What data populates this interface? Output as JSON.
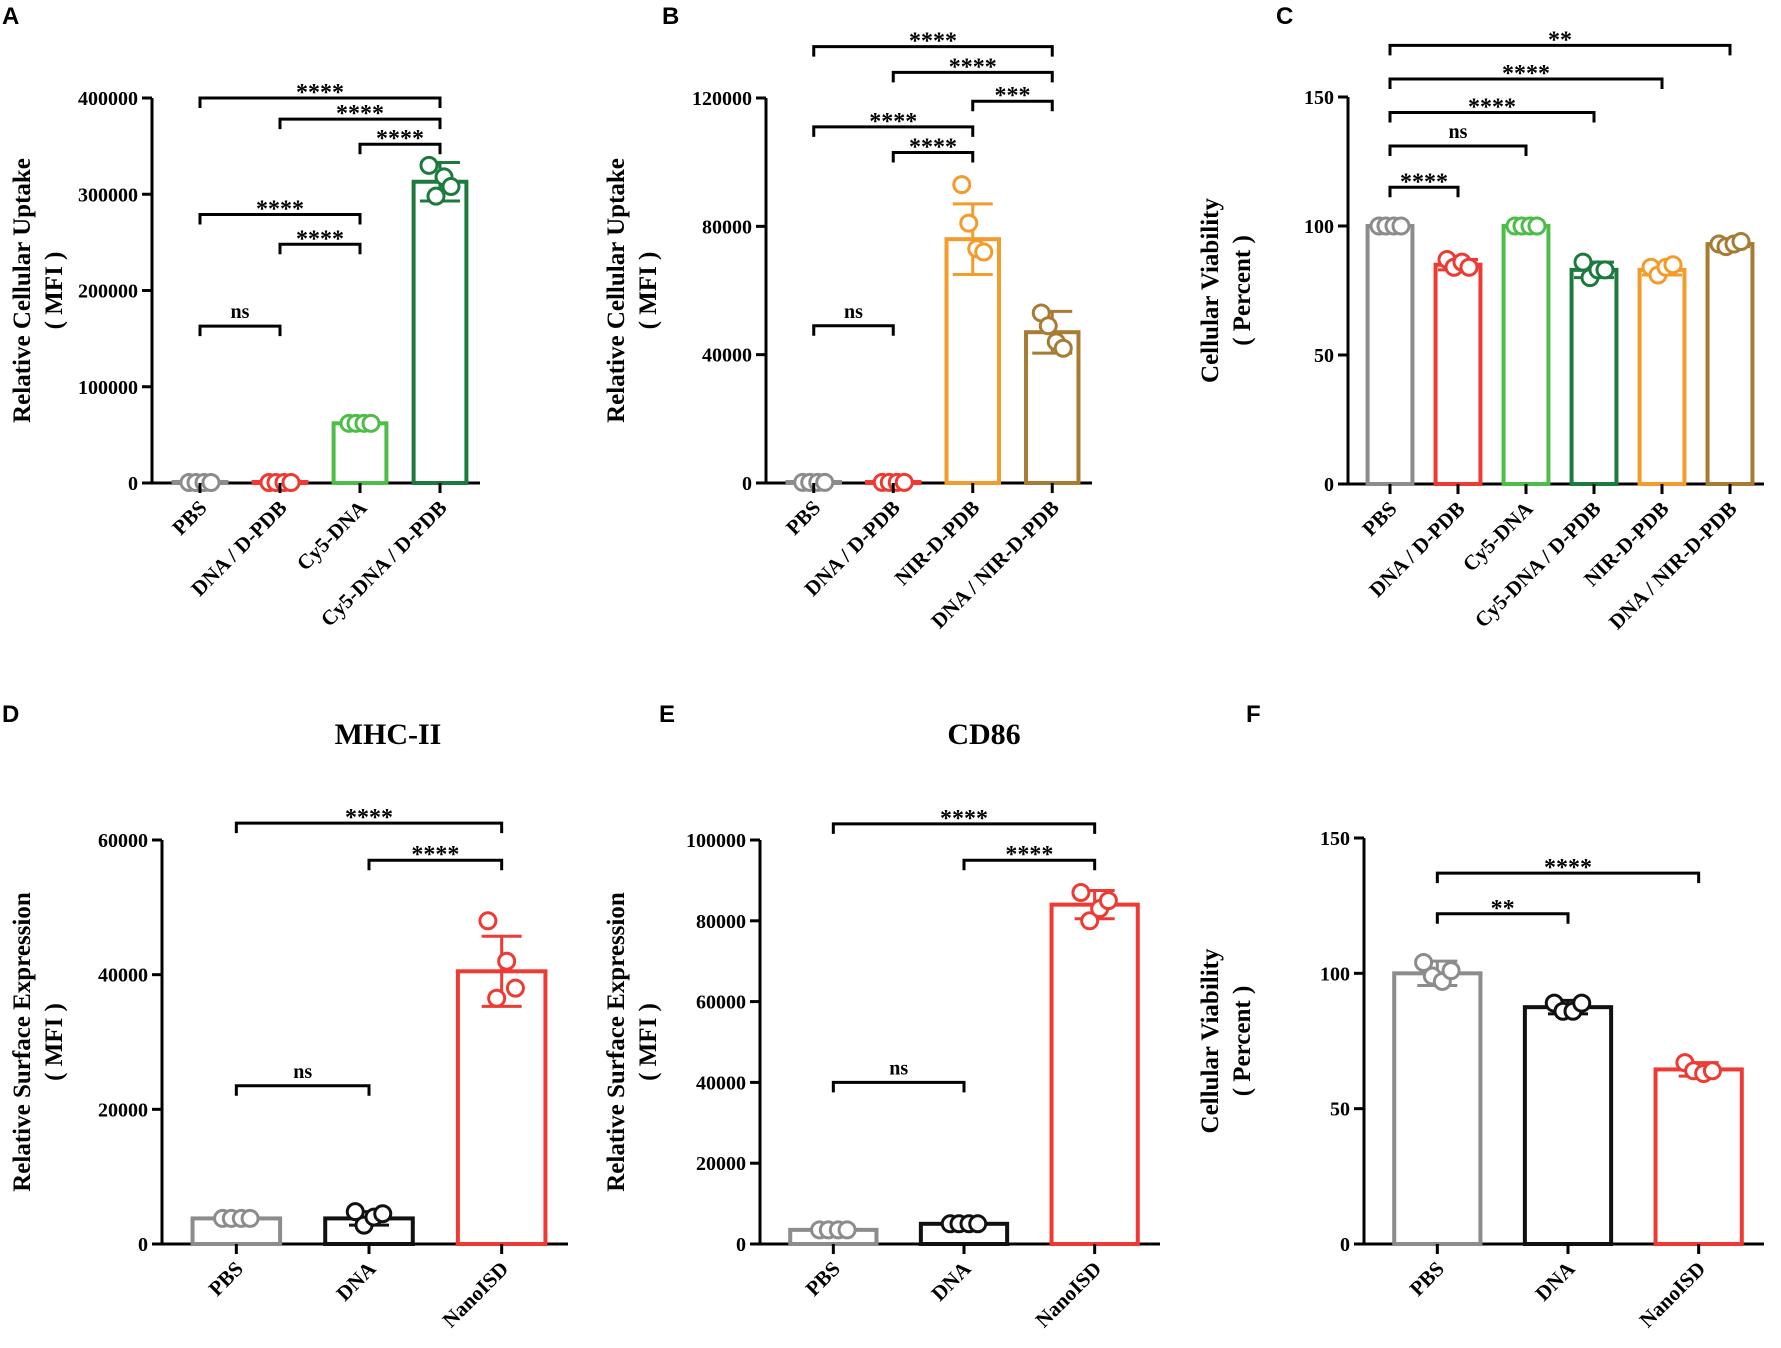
{
  "colors": {
    "gray": "#8c8c8c",
    "red": "#ee3a33",
    "light_green": "#4dbd48",
    "dark_green": "#1d7a3e",
    "orange": "#f39b2b",
    "brown": "#a87b35",
    "black": "#111111"
  },
  "chart_data": [
    {
      "panel": "A",
      "type": "bar",
      "title": "",
      "ylabel": "Relative Cellular Uptake",
      "ylabel_unit": "( MFI )",
      "ylim": [
        0,
        400000
      ],
      "yticks": [
        "0",
        "100000",
        "200000",
        "300000",
        "400000"
      ],
      "categories": [
        "PBS",
        "DNA / D-PDB",
        "Cy5-DNA",
        "Cy5-DNA / D-PDB"
      ],
      "values": [
        500,
        500,
        62000,
        313000
      ],
      "errors": [
        0,
        0,
        0,
        20000
      ],
      "points": [
        [
          500,
          500,
          500,
          500
        ],
        [
          500,
          500,
          500,
          500
        ],
        [
          62000,
          62000,
          62000,
          62000
        ],
        [
          330000,
          298000,
          318000,
          308000
        ]
      ],
      "colors": [
        "gray",
        "red",
        "light_green",
        "dark_green"
      ],
      "comparisons": [
        {
          "from": 0,
          "to": 3,
          "label": "****",
          "level": 400000
        },
        {
          "from": 1,
          "to": 3,
          "label": "****",
          "level": 378000
        },
        {
          "from": 2,
          "to": 3,
          "label": "****",
          "level": 352000
        },
        {
          "from": 0,
          "to": 2,
          "label": "****",
          "level": 279000
        },
        {
          "from": 1,
          "to": 2,
          "label": "****",
          "level": 248000
        },
        {
          "from": 0,
          "to": 1,
          "label": "ns",
          "level": 163000
        }
      ]
    },
    {
      "panel": "B",
      "type": "bar",
      "title": "",
      "ylabel": "Relative Cellular Uptake",
      "ylabel_unit": "( MFI )",
      "ylim": [
        0,
        120000
      ],
      "yticks": [
        "0",
        "40000",
        "80000",
        "120000"
      ],
      "categories": [
        "PBS",
        "DNA / D-PDB",
        "NIR-D-PDB",
        "DNA / NIR-D-PDB"
      ],
      "values": [
        200,
        200,
        76000,
        47000
      ],
      "errors": [
        0,
        0,
        11000,
        6500
      ],
      "points": [
        [
          200,
          200,
          200,
          200
        ],
        [
          200,
          200,
          200,
          200
        ],
        [
          93000,
          81000,
          73000,
          72000
        ],
        [
          53000,
          49000,
          44000,
          42000
        ]
      ],
      "colors": [
        "gray",
        "red",
        "orange",
        "brown"
      ],
      "comparisons": [
        {
          "from": 0,
          "to": 3,
          "label": "****",
          "level": 136000
        },
        {
          "from": 1,
          "to": 3,
          "label": "****",
          "level": 128000
        },
        {
          "from": 2,
          "to": 3,
          "label": "***",
          "level": 119000
        },
        {
          "from": 0,
          "to": 2,
          "label": "****",
          "level": 111000
        },
        {
          "from": 1,
          "to": 2,
          "label": "****",
          "level": 103000
        },
        {
          "from": 0,
          "to": 1,
          "label": "ns",
          "level": 49000
        }
      ]
    },
    {
      "panel": "C",
      "type": "bar",
      "title": "",
      "ylabel": "Cellular Viability",
      "ylabel_unit": "( Percent )",
      "ylim": [
        0,
        150
      ],
      "yticks": [
        "0",
        "50",
        "100",
        "150"
      ],
      "categories": [
        "PBS",
        "DNA / D-PDB",
        "Cy5-DNA",
        "Cy5-DNA / D-PDB",
        "NIR-D-PDB",
        "DNA / NIR-D-PDB"
      ],
      "values": [
        100,
        85,
        100,
        83,
        83,
        93
      ],
      "errors": [
        0.8,
        2,
        0.5,
        3,
        2,
        1
      ],
      "points": [
        [
          100,
          100,
          100,
          100
        ],
        [
          87,
          84,
          86,
          84
        ],
        [
          100,
          100,
          100,
          100
        ],
        [
          86,
          80,
          83,
          83
        ],
        [
          84,
          81,
          84,
          85
        ],
        [
          93,
          92,
          93,
          94
        ]
      ],
      "colors": [
        "gray",
        "red",
        "light_green",
        "dark_green",
        "orange",
        "brown"
      ],
      "comparisons": [
        {
          "from": 0,
          "to": 5,
          "label": "**",
          "level": 170
        },
        {
          "from": 0,
          "to": 4,
          "label": "****",
          "level": 157
        },
        {
          "from": 0,
          "to": 3,
          "label": "****",
          "level": 144
        },
        {
          "from": 0,
          "to": 2,
          "label": "ns",
          "level": 131
        },
        {
          "from": 0,
          "to": 1,
          "label": "****",
          "level": 115
        }
      ]
    },
    {
      "panel": "D",
      "type": "bar",
      "title": "MHC-II",
      "ylabel": "Relative Surface Expression",
      "ylabel_unit": "( MFI )",
      "ylim": [
        0,
        60000
      ],
      "yticks": [
        "0",
        "20000",
        "40000",
        "60000"
      ],
      "categories": [
        "PBS",
        "DNA",
        "NanoISD"
      ],
      "values": [
        3800,
        3800,
        40500
      ],
      "errors": [
        0,
        1000,
        5200
      ],
      "points": [
        [
          3800,
          3800,
          3800,
          3800
        ],
        [
          4800,
          2800,
          4000,
          4500
        ],
        [
          48000,
          36500,
          42000,
          38000
        ]
      ],
      "colors": [
        "gray",
        "black",
        "red"
      ],
      "comparisons": [
        {
          "from": 0,
          "to": 2,
          "label": "****",
          "level": 62500
        },
        {
          "from": 1,
          "to": 2,
          "label": "****",
          "level": 57000
        },
        {
          "from": 0,
          "to": 1,
          "label": "ns",
          "level": 23500
        }
      ]
    },
    {
      "panel": "E",
      "type": "bar",
      "title": "CD86",
      "ylabel": "Relative Surface Expression",
      "ylabel_unit": "( MFI )",
      "ylim": [
        0,
        100000
      ],
      "yticks": [
        "0",
        "20000",
        "40000",
        "60000",
        "80000",
        "100000"
      ],
      "categories": [
        "PBS",
        "DNA",
        "NanoISD"
      ],
      "values": [
        3500,
        5000,
        84000
      ],
      "errors": [
        0,
        0,
        3500
      ],
      "points": [
        [
          3500,
          3500,
          3500,
          3500
        ],
        [
          5000,
          5000,
          5000,
          5000
        ],
        [
          87000,
          80000,
          83000,
          85000
        ]
      ],
      "colors": [
        "gray",
        "black",
        "red"
      ],
      "comparisons": [
        {
          "from": 0,
          "to": 2,
          "label": "****",
          "level": 104000
        },
        {
          "from": 1,
          "to": 2,
          "label": "****",
          "level": 95000
        },
        {
          "from": 0,
          "to": 1,
          "label": "ns",
          "level": 40000
        }
      ]
    },
    {
      "panel": "F",
      "type": "bar",
      "title": "",
      "ylabel": "Cellular Viability",
      "ylabel_unit": "( Percent )",
      "ylim": [
        0,
        150
      ],
      "yticks": [
        "0",
        "50",
        "100",
        "150"
      ],
      "categories": [
        "PBS",
        "DNA",
        "NanoISD"
      ],
      "values": [
        100,
        87.5,
        64.5
      ],
      "errors": [
        4.5,
        2.5,
        2.5
      ],
      "points": [
        [
          104,
          99,
          97,
          101
        ],
        [
          89,
          86,
          86,
          89
        ],
        [
          67,
          64,
          63,
          64
        ]
      ],
      "colors": [
        "gray",
        "black",
        "red"
      ],
      "comparisons": [
        {
          "from": 0,
          "to": 2,
          "label": "****",
          "level": 137
        },
        {
          "from": 0,
          "to": 1,
          "label": "**",
          "level": 122
        }
      ]
    }
  ]
}
